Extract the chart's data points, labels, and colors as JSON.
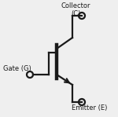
{
  "bg_color": "#efefef",
  "line_color": "#1a1a1a",
  "text_color": "#1a1a1a",
  "gate_label": "Gate (G)",
  "collector_label": "Collector\n(C)",
  "emitter_label": "Emitter (E)",
  "lw": 1.6
}
